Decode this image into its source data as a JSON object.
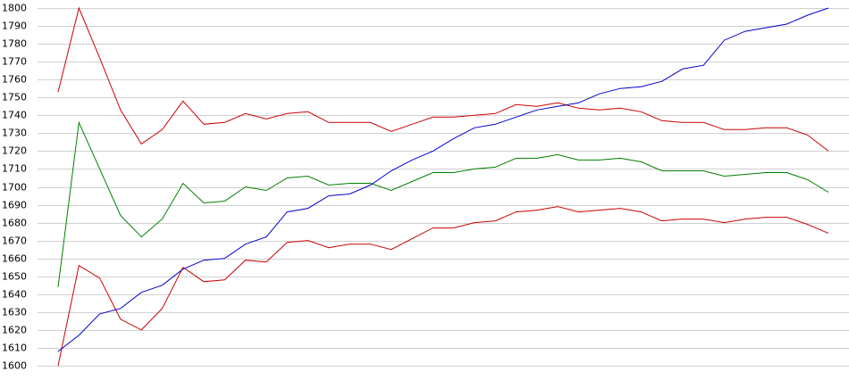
{
  "chart_data": {
    "type": "line",
    "categories": [
      null,
      null,
      null,
      null,
      null,
      null,
      null,
      null,
      null,
      null,
      null,
      null,
      null,
      null,
      null,
      null,
      null,
      null,
      null,
      null,
      null,
      null,
      null,
      null,
      null,
      null,
      null,
      null,
      null,
      null,
      null,
      null,
      null,
      null,
      null,
      null,
      null,
      null
    ],
    "series": [
      {
        "color": "#cc0000",
        "values": [
          1753,
          1800,
          1772,
          1743,
          1724,
          1732,
          1748,
          1735,
          1736,
          1741,
          1738,
          1741,
          1742,
          1736,
          1736,
          1736,
          1731,
          1735,
          1739,
          1739,
          1740,
          1741,
          1746,
          1745,
          1747,
          1744,
          1743,
          1744,
          1742,
          1737,
          1736,
          1736,
          1732,
          1732,
          1733,
          1733,
          1729,
          1720
        ]
      },
      {
        "color": "#008000",
        "values": [
          1644,
          1736,
          1710,
          1684,
          1672,
          1682,
          1702,
          1691,
          1692,
          1700,
          1698,
          1705,
          1706,
          1701,
          1702,
          1702,
          1698,
          1703,
          1708,
          1708,
          1710,
          1711,
          1716,
          1716,
          1718,
          1715,
          1715,
          1716,
          1714,
          1709,
          1709,
          1709,
          1706,
          1707,
          1708,
          1708,
          1704,
          1697
        ]
      },
      {
        "color": "#cc0000",
        "values": [
          1600,
          1656,
          1649,
          1626,
          1620,
          1632,
          1655,
          1647,
          1648,
          1659,
          1658,
          1669,
          1670,
          1666,
          1668,
          1668,
          1665,
          1671,
          1677,
          1677,
          1680,
          1681,
          1686,
          1687,
          1689,
          1686,
          1687,
          1688,
          1686,
          1681,
          1682,
          1682,
          1680,
          1682,
          1683,
          1683,
          1679,
          1674
        ]
      },
      {
        "color": "#0000cc",
        "values": [
          1608,
          1617,
          1629,
          1632,
          1641,
          1645,
          1654,
          1659,
          1660,
          1668,
          1672,
          1686,
          1688,
          1695,
          1696,
          1701,
          1709,
          1715,
          1720,
          1727,
          1733,
          1735,
          1739,
          1743,
          1745,
          1747,
          1752,
          1755,
          1756,
          1759,
          1766,
          1768,
          1782,
          1787,
          1789,
          1791,
          1796,
          1800
        ]
      }
    ],
    "ylim": [
      1600,
      1800
    ],
    "yticks": [
      1600,
      1610,
      1620,
      1630,
      1640,
      1650,
      1660,
      1670,
      1680,
      1690,
      1700,
      1710,
      1720,
      1730,
      1740,
      1750,
      1760,
      1770,
      1780,
      1790,
      1800
    ],
    "grid": true
  }
}
